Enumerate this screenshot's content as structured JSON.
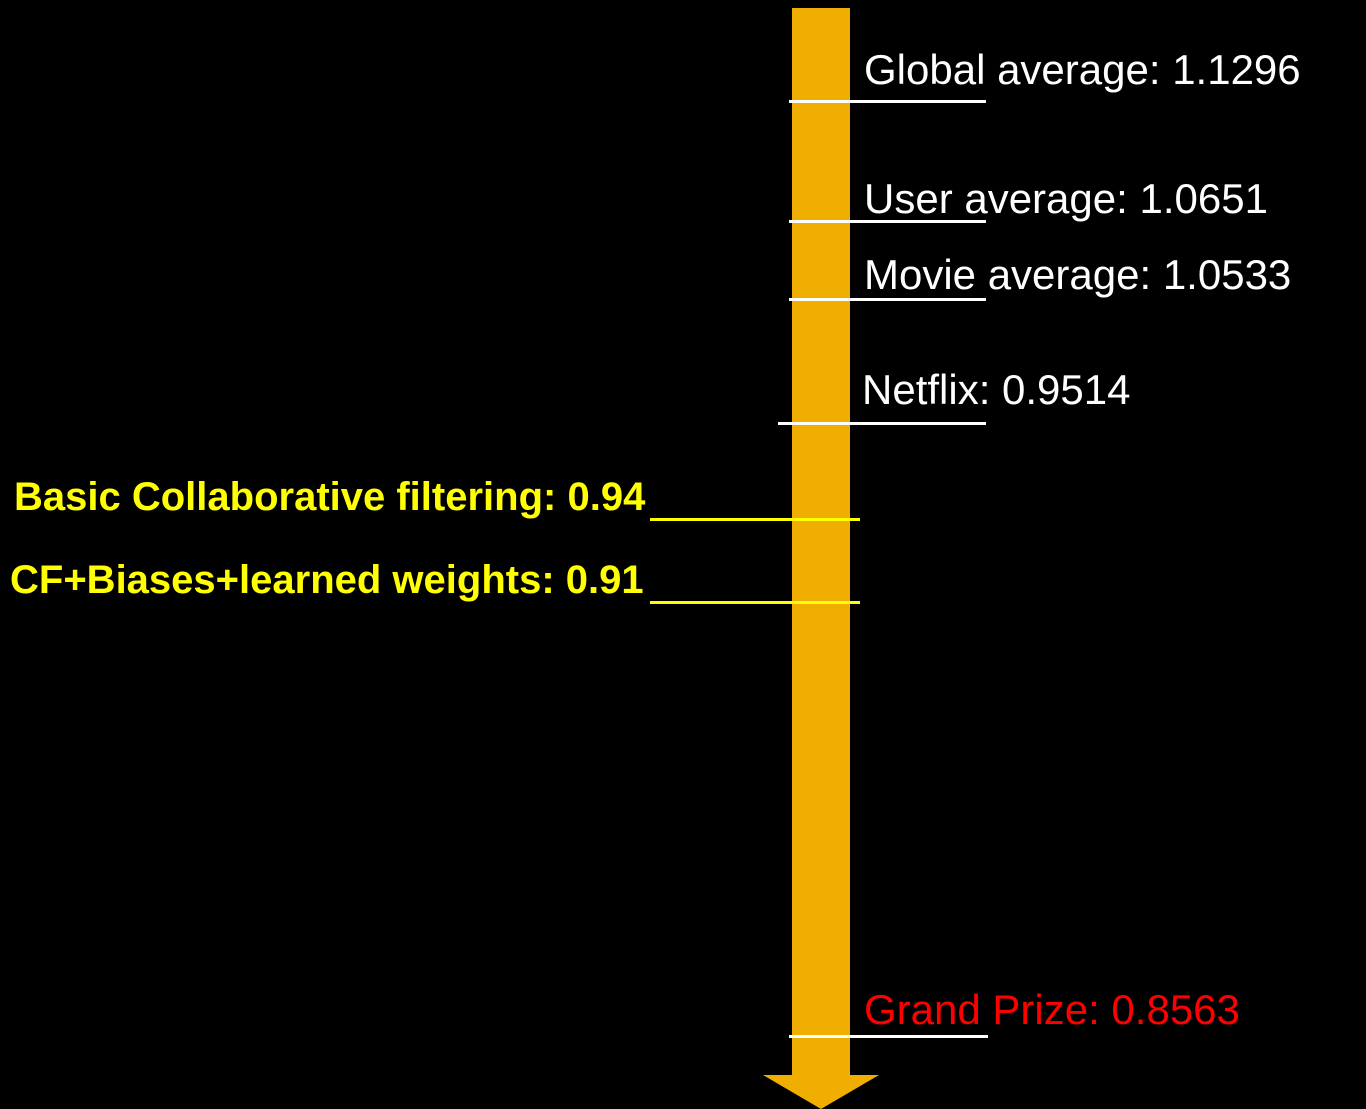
{
  "colors": {
    "background": "#000000",
    "arrow": "#F0AE00",
    "baseline_text": "#FFFFFF",
    "method_text": "#FFFF00",
    "target_text": "#FF0000"
  },
  "milestones": [
    {
      "id": "global",
      "label": "Global average: 1.1296",
      "value": 1.1296
    },
    {
      "id": "user",
      "label": "User average: 1.0651",
      "value": 1.0651
    },
    {
      "id": "movie",
      "label": "Movie average: 1.0533",
      "value": 1.0533
    },
    {
      "id": "netflix",
      "label": "Netflix: 0.9514",
      "value": 0.9514
    },
    {
      "id": "basic-cf",
      "label": "Basic Collaborative filtering: 0.94",
      "value": 0.94
    },
    {
      "id": "cf-biases",
      "label": "CF+Biases+learned weights: 0.91",
      "value": 0.91
    },
    {
      "id": "grand-prize",
      "label": "Grand Prize: 0.8563",
      "value": 0.8563
    }
  ]
}
